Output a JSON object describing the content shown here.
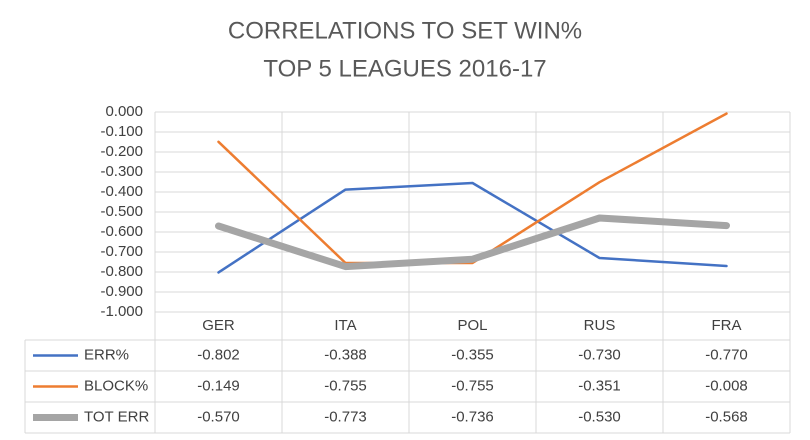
{
  "chart_data": {
    "type": "line",
    "title": "CORRELATIONS TO SET WIN%",
    "subtitle": "TOP 5 LEAGUES 2016-17",
    "categories": [
      "GER",
      "ITA",
      "POL",
      "RUS",
      "FRA"
    ],
    "series": [
      {
        "name": "ERR%",
        "color": "#4472c4",
        "width": 2.5,
        "values": [
          -0.802,
          -0.388,
          -0.355,
          -0.73,
          -0.77
        ],
        "value_labels": [
          "-0.802",
          "-0.388",
          "-0.355",
          "-0.730",
          "-0.770"
        ]
      },
      {
        "name": "BLOCK%",
        "color": "#ed7d31",
        "width": 2.5,
        "values": [
          -0.149,
          -0.755,
          -0.755,
          -0.351,
          -0.008
        ],
        "value_labels": [
          "-0.149",
          "-0.755",
          "-0.755",
          "-0.351",
          "-0.008"
        ]
      },
      {
        "name": "TOT ERR",
        "color": "#a5a5a5",
        "width": 7,
        "values": [
          -0.57,
          -0.773,
          -0.736,
          -0.53,
          -0.568
        ],
        "value_labels": [
          "-0.570",
          "-0.773",
          "-0.736",
          "-0.530",
          "-0.568"
        ]
      }
    ],
    "ylim": [
      -1,
      0
    ],
    "yticks": [
      {
        "value": 0,
        "label": "0.000"
      },
      {
        "value": -0.1,
        "label": "-0.100"
      },
      {
        "value": -0.2,
        "label": "-0.200"
      },
      {
        "value": -0.3,
        "label": "-0.300"
      },
      {
        "value": -0.4,
        "label": "-0.400"
      },
      {
        "value": -0.5,
        "label": "-0.500"
      },
      {
        "value": -0.6,
        "label": "-0.600"
      },
      {
        "value": -0.7,
        "label": "-0.700"
      },
      {
        "value": -0.8,
        "label": "-0.800"
      },
      {
        "value": -0.9,
        "label": "-0.900"
      },
      {
        "value": -1,
        "label": "-1.000"
      }
    ],
    "grid": true,
    "data_table": true
  }
}
